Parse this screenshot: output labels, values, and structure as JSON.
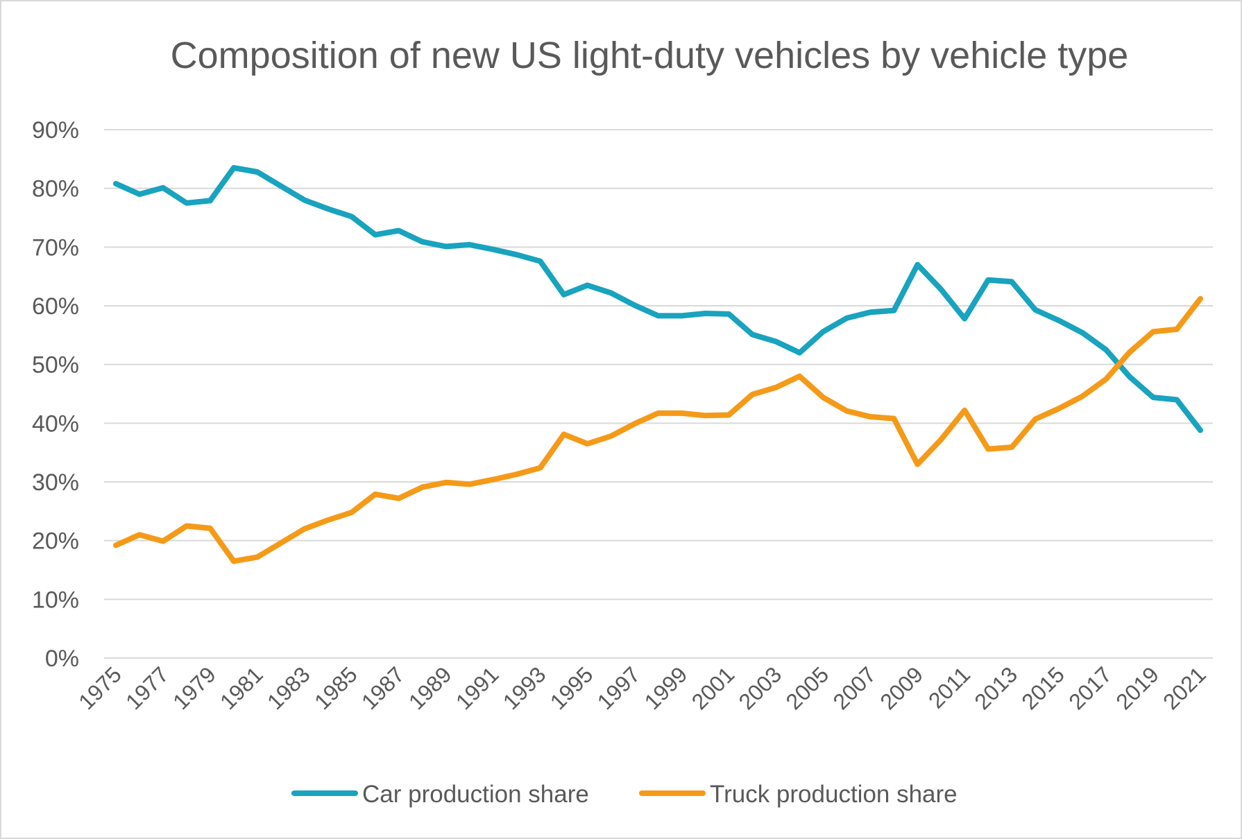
{
  "chart_data": {
    "type": "line",
    "title": "Composition of new US light-duty vehicles by vehicle type",
    "xlabel": "",
    "ylabel": "",
    "ylim": [
      0,
      90
    ],
    "y_tick_labels": [
      "0%",
      "10%",
      "20%",
      "30%",
      "40%",
      "50%",
      "60%",
      "70%",
      "80%",
      "90%"
    ],
    "x_tick_labels": [
      "1975",
      "1977",
      "1979",
      "1981",
      "1983",
      "1985",
      "1987",
      "1989",
      "1991",
      "1993",
      "1995",
      "1997",
      "1999",
      "2001",
      "2003",
      "2005",
      "2007",
      "2009",
      "2011",
      "2013",
      "2015",
      "2017",
      "2019",
      "2021"
    ],
    "grid": true,
    "legend_position": "bottom",
    "x": [
      1975,
      1976,
      1977,
      1978,
      1979,
      1980,
      1981,
      1982,
      1983,
      1984,
      1985,
      1986,
      1987,
      1988,
      1989,
      1990,
      1991,
      1992,
      1993,
      1994,
      1995,
      1996,
      1997,
      1998,
      1999,
      2000,
      2001,
      2002,
      2003,
      2004,
      2005,
      2006,
      2007,
      2008,
      2009,
      2010,
      2011,
      2012,
      2013,
      2014,
      2015,
      2016,
      2017,
      2018,
      2019,
      2020,
      2021
    ],
    "series": [
      {
        "name": "Car production share",
        "color": "#18a3bf",
        "values": [
          80.8,
          79.0,
          80.1,
          77.5,
          77.9,
          83.5,
          82.8,
          80.4,
          78.0,
          76.5,
          75.2,
          72.1,
          72.8,
          70.9,
          70.1,
          70.4,
          69.6,
          68.7,
          67.6,
          61.9,
          63.5,
          62.2,
          60.1,
          58.3,
          58.3,
          58.7,
          58.6,
          55.1,
          53.9,
          52.0,
          55.6,
          57.9,
          58.9,
          59.2,
          67.0,
          62.8,
          57.8,
          64.4,
          64.1,
          59.3,
          57.5,
          55.4,
          52.5,
          47.9,
          44.4,
          44.0,
          38.8
        ]
      },
      {
        "name": "Truck production share",
        "color": "#f59a18",
        "values": [
          19.2,
          21.0,
          19.9,
          22.5,
          22.1,
          16.5,
          17.2,
          19.6,
          22.0,
          23.5,
          24.8,
          27.9,
          27.2,
          29.1,
          29.9,
          29.6,
          30.4,
          31.3,
          32.4,
          38.1,
          36.5,
          37.8,
          39.9,
          41.7,
          41.7,
          41.3,
          41.4,
          44.9,
          46.1,
          48.0,
          44.4,
          42.1,
          41.1,
          40.8,
          33.0,
          37.2,
          42.2,
          35.6,
          35.9,
          40.7,
          42.5,
          44.6,
          47.5,
          52.1,
          55.6,
          56.0,
          61.2
        ]
      }
    ]
  }
}
